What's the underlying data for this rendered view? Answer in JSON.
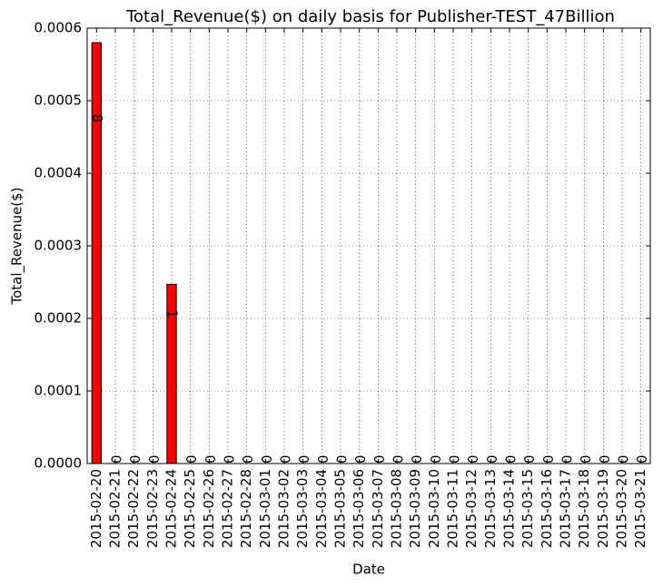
{
  "chart_data": {
    "type": "bar",
    "title": "Total_Revenue($) on daily basis for Publisher-TEST_47Billion",
    "xlabel": "Date",
    "ylabel": "Total_Revenue($)",
    "categories": [
      "2015-02-20",
      "2015-02-21",
      "2015-02-22",
      "2015-02-23",
      "2015-02-24",
      "2015-02-25",
      "2015-02-26",
      "2015-02-27",
      "2015-02-28",
      "2015-03-01",
      "2015-03-02",
      "2015-03-03",
      "2015-03-04",
      "2015-03-05",
      "2015-03-06",
      "2015-03-07",
      "2015-03-08",
      "2015-03-09",
      "2015-03-10",
      "2015-03-11",
      "2015-03-12",
      "2015-03-13",
      "2015-03-14",
      "2015-03-15",
      "2015-03-16",
      "2015-03-17",
      "2015-03-18",
      "2015-03-19",
      "2015-03-20",
      "2015-03-21"
    ],
    "values": [
      0.00058,
      0,
      0,
      0,
      0.000247,
      0,
      0,
      0,
      0,
      0,
      0,
      0,
      0,
      0,
      0,
      0,
      0,
      0,
      0,
      0,
      0,
      0,
      0,
      0,
      0,
      0,
      0,
      0,
      0,
      0
    ],
    "bar_labels": [
      8,
      0,
      0,
      0,
      1,
      0,
      0,
      0,
      0,
      0,
      0,
      0,
      0,
      0,
      0,
      0,
      0,
      0,
      0,
      0,
      0,
      0,
      0,
      0,
      0,
      0,
      0,
      0,
      0,
      0
    ],
    "color": "#ff0000",
    "ylim": [
      0,
      0.0006
    ],
    "yticks": [
      {
        "value": 0,
        "label": "0.0000"
      },
      {
        "value": 0.0001,
        "label": "0.0001"
      },
      {
        "value": 0.0002,
        "label": "0.0002"
      },
      {
        "value": 0.0003,
        "label": "0.0003"
      },
      {
        "value": 0.0004,
        "label": "0.0004"
      },
      {
        "value": 0.0005,
        "label": "0.0005"
      },
      {
        "value": 0.0006,
        "label": "0.0006"
      }
    ],
    "grid": true
  }
}
